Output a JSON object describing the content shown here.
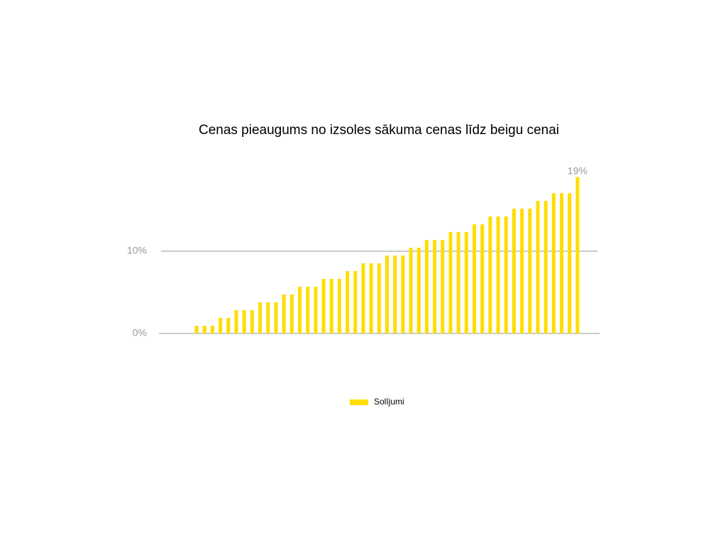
{
  "chart_data": {
    "type": "bar",
    "title": "Cenas pieaugums no izsoles sākuma cenas līdz beigu cenai",
    "categories": [
      null,
      null,
      null,
      null,
      null,
      null,
      null,
      null,
      null,
      null,
      null,
      null,
      null,
      null,
      null,
      null,
      null,
      null,
      null,
      null,
      null,
      null,
      null,
      null,
      null,
      null,
      null,
      null,
      null,
      null,
      null,
      null,
      null,
      null,
      null,
      null,
      null,
      null,
      null,
      null,
      null,
      null,
      null,
      null,
      null,
      null,
      null,
      null,
      null
    ],
    "series": [
      {
        "name": "Solījumi",
        "color": "#ffdd00",
        "values": [
          0.95,
          0.95,
          0.95,
          1.9,
          1.9,
          2.84,
          2.84,
          2.84,
          3.79,
          3.79,
          3.79,
          4.74,
          4.74,
          5.68,
          5.68,
          5.68,
          6.63,
          6.63,
          6.63,
          7.58,
          7.58,
          8.53,
          8.53,
          8.53,
          9.47,
          9.47,
          9.47,
          10.42,
          10.42,
          11.37,
          11.37,
          11.37,
          12.32,
          12.32,
          12.32,
          13.26,
          13.26,
          14.21,
          14.21,
          14.21,
          15.16,
          15.16,
          15.16,
          16.11,
          16.11,
          17.05,
          17.05,
          17.05,
          19
        ],
        "value_labels": [
          null,
          null,
          null,
          null,
          null,
          null,
          null,
          null,
          null,
          null,
          null,
          null,
          null,
          null,
          null,
          null,
          null,
          null,
          null,
          null,
          null,
          null,
          null,
          null,
          null,
          null,
          null,
          null,
          null,
          null,
          null,
          null,
          null,
          null,
          null,
          null,
          null,
          null,
          null,
          null,
          null,
          null,
          null,
          null,
          null,
          null,
          null,
          null,
          "19%"
        ]
      }
    ],
    "ylim": [
      0,
      20
    ],
    "yticks": [
      {
        "value": 0,
        "label": "0%"
      },
      {
        "value": 10,
        "label": "10%"
      }
    ],
    "grid": true,
    "legend": "bottom"
  }
}
